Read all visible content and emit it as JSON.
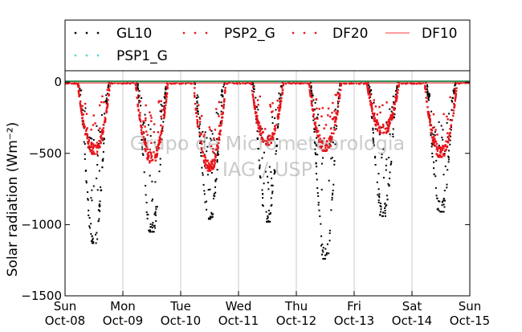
{
  "chart_data": {
    "type": "scatter",
    "ylabel": "Solar radiation ($Wm^{-2}$)",
    "ylabel_display": "Solar radiation (Wm⁻²)",
    "ylim": [
      -1500,
      80
    ],
    "xlim": [
      0,
      7
    ],
    "yticks": [
      0,
      -500,
      -1000,
      -1500
    ],
    "ytick_labels": [
      "0",
      "−500",
      "−1000",
      "−1500"
    ],
    "xticks": [
      0,
      1,
      2,
      3,
      4,
      5,
      6,
      7
    ],
    "xtick_labels": [
      [
        "Sun",
        "Oct-08"
      ],
      [
        "Mon",
        "Oct-09"
      ],
      [
        "Tue",
        "Oct-10"
      ],
      [
        "Wed",
        "Oct-11"
      ],
      [
        "Thu",
        "Oct-12"
      ],
      [
        "Fri",
        "Oct-13"
      ],
      [
        "Sat",
        "Oct-14"
      ],
      [
        "Sun",
        "Oct-15"
      ]
    ],
    "grid": "vertical",
    "legend": {
      "placement": "top",
      "entries": [
        {
          "label": "GL10",
          "color": "#000000",
          "marker": "dot"
        },
        {
          "label": "PSP2_G",
          "color": "#e8141a",
          "marker": "dot"
        },
        {
          "label": "DF20",
          "color": "#e8141a",
          "marker": "dot"
        },
        {
          "label": "DF10",
          "color": "#ff6060",
          "marker": "line"
        },
        {
          "label": "PSP1_G",
          "color": "#40e0d0",
          "marker": "dot"
        }
      ]
    },
    "watermark": [
      "Grupo de Micrometeorologia",
      "IAG / USP"
    ],
    "days": [
      {
        "day": "Oct-08",
        "gl10_min": -1130,
        "psp_min": -480
      },
      {
        "day": "Oct-09",
        "gl10_min": -1050,
        "psp_min": -540
      },
      {
        "day": "Oct-10",
        "gl10_min": -960,
        "psp_min": -600
      },
      {
        "day": "Oct-11",
        "gl10_min": -980,
        "psp_min": -420
      },
      {
        "day": "Oct-12",
        "gl10_min": -1240,
        "psp_min": -460
      },
      {
        "day": "Oct-13",
        "gl10_min": -940,
        "psp_min": -340
      },
      {
        "day": "Oct-14",
        "gl10_min": -910,
        "psp_min": -500
      }
    ],
    "colors": {
      "gl10": "#000000",
      "psp": "#e8141a",
      "df10_line": "#ff6060",
      "psp1_g": "#40e0d0",
      "baseline": "#2e8b57",
      "grid": "#c8c8c8"
    }
  }
}
